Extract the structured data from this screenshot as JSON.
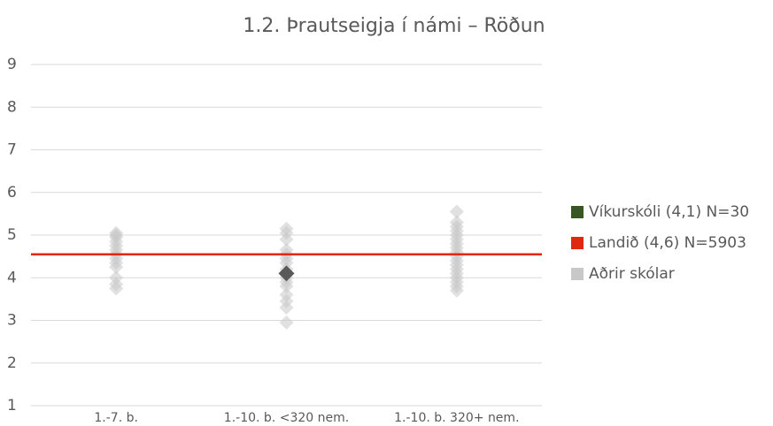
{
  "chart_data": {
    "type": "strip",
    "title": "1.2. Þrautseigja í námi – Röðun",
    "categories": [
      "1.-7. b.",
      "1.-10. b. <320 nem.",
      "1.-10. b. 320+ nem."
    ],
    "ylim": [
      1,
      9
    ],
    "yticks": [
      1,
      2,
      3,
      4,
      5,
      6,
      7,
      8,
      9
    ],
    "grid": true,
    "legend": "right",
    "series": [
      {
        "name": "Víkurskóli (4,1) N=30",
        "color": "#375623",
        "marker_color": "#595959",
        "values": [
          null,
          4.1,
          null
        ]
      },
      {
        "name": "Landið (4,6) N=5903",
        "color": "#e0280f",
        "value": 4.55
      },
      {
        "name": "Aðrir skólar",
        "color": "#c8c8c8",
        "values": [
          [
            5.05,
            5.0,
            4.95,
            4.85,
            4.75,
            4.65,
            4.55,
            4.45,
            4.35,
            4.25,
            4.0,
            3.85,
            3.75
          ],
          [
            5.15,
            5.05,
            4.9,
            4.65,
            4.55,
            4.45,
            4.35,
            4.2,
            4.0,
            3.9,
            3.8,
            3.6,
            3.45,
            3.3,
            2.95
          ],
          [
            5.55,
            5.3,
            5.2,
            5.1,
            5.0,
            4.9,
            4.8,
            4.7,
            4.6,
            4.5,
            4.4,
            4.3,
            4.2,
            4.1,
            4.0,
            3.9,
            3.8,
            3.7
          ]
        ]
      }
    ]
  }
}
